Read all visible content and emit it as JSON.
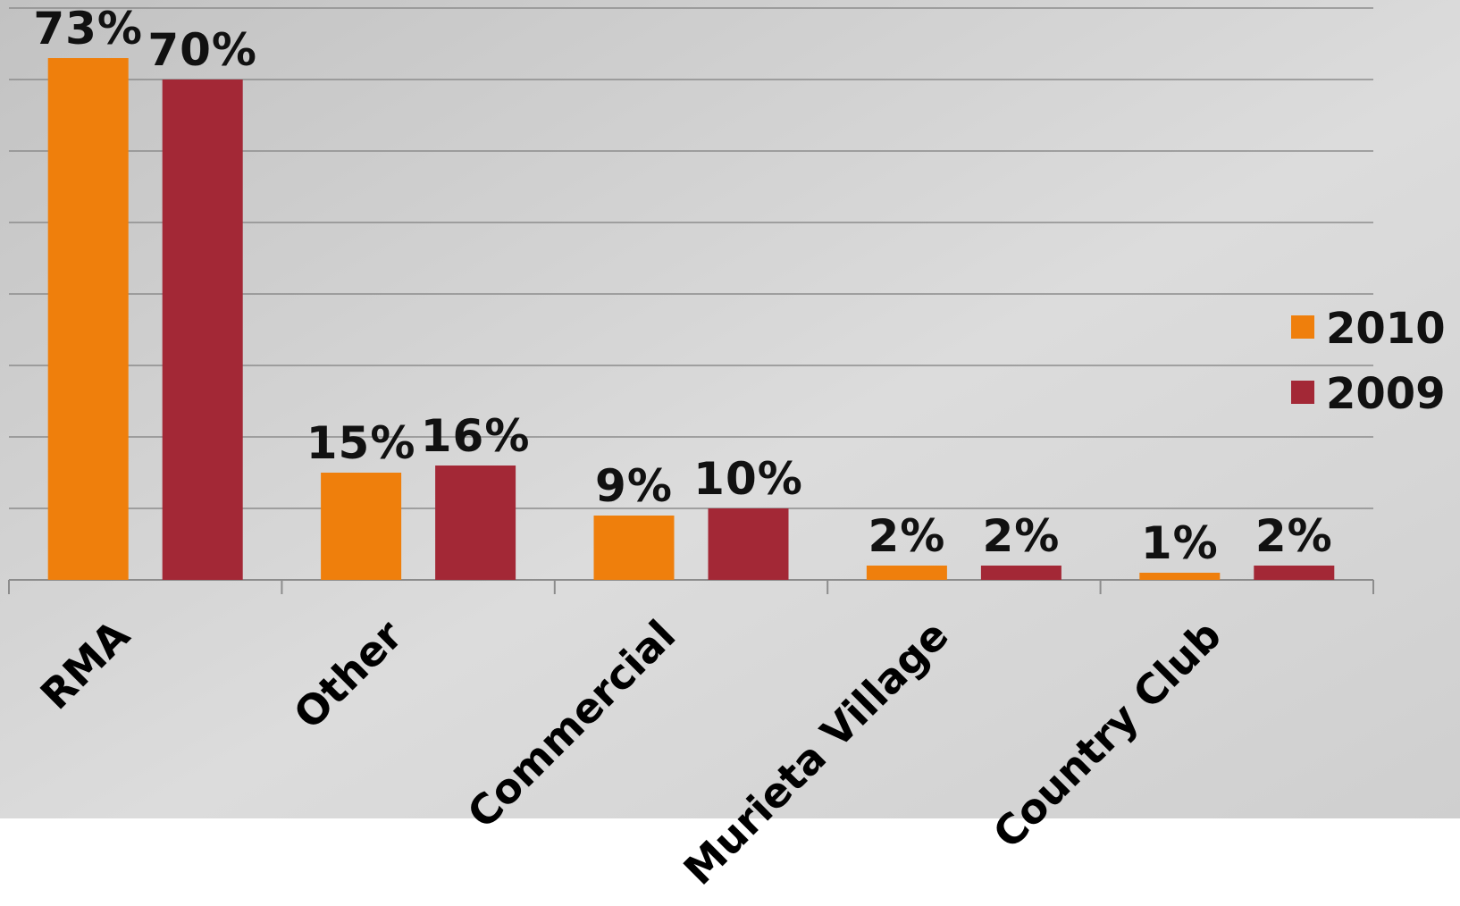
{
  "chart_data": {
    "type": "bar",
    "categories": [
      "RMA",
      "Other",
      "Commercial",
      "Murieta Village",
      "Country Club"
    ],
    "series": [
      {
        "name": "2010",
        "color": "#ef7f0c",
        "values": [
          73,
          15,
          9,
          2,
          1
        ],
        "labels": [
          "73%",
          "15%",
          "9%",
          "2%",
          "1%"
        ]
      },
      {
        "name": "2009",
        "color": "#a32836",
        "values": [
          70,
          16,
          10,
          2,
          2
        ],
        "labels": [
          "70%",
          "16%",
          "10%",
          "2%",
          "2%"
        ]
      }
    ],
    "ylim": [
      0,
      80
    ],
    "unit": "%",
    "grid": true,
    "legend_position": "right"
  }
}
